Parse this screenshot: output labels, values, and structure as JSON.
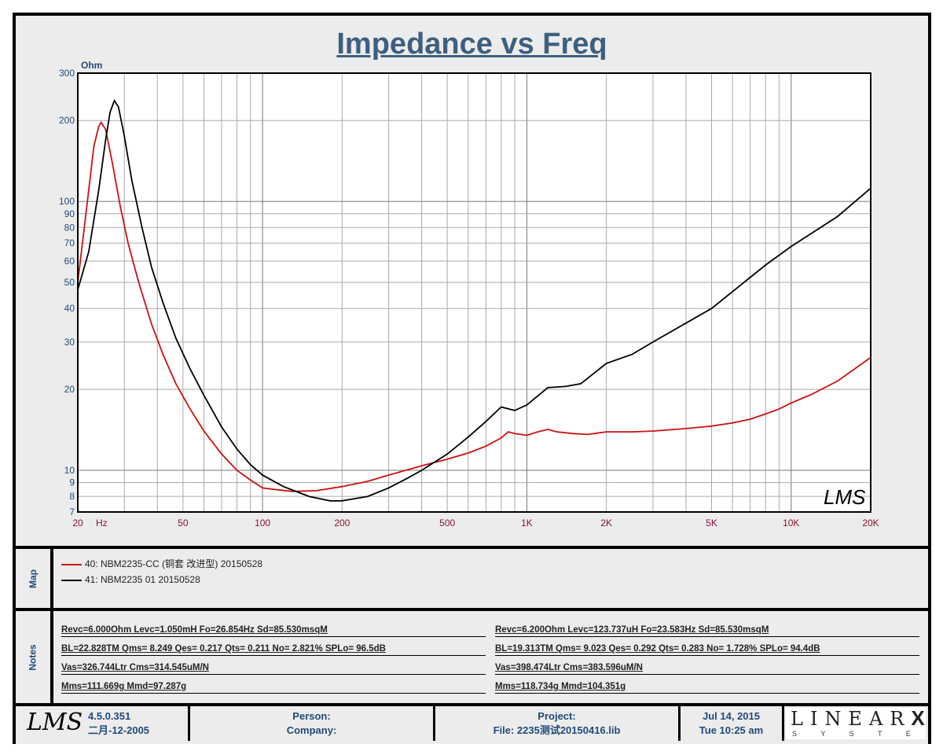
{
  "chart_data": {
    "type": "line",
    "title": "Impedance vs Freq",
    "ylabel": "Ohm",
    "xlabel": "Hz",
    "xscale": "log",
    "yscale": "log",
    "xlim": [
      20,
      20000
    ],
    "ylim": [
      7,
      300
    ],
    "grid": true,
    "x_ticks": [
      {
        "v": 20,
        "l": "20"
      },
      {
        "v": 50,
        "l": "50"
      },
      {
        "v": 100,
        "l": "100"
      },
      {
        "v": 200,
        "l": "200"
      },
      {
        "v": 500,
        "l": "500"
      },
      {
        "v": 1000,
        "l": "1K"
      },
      {
        "v": 2000,
        "l": "2K"
      },
      {
        "v": 5000,
        "l": "5K"
      },
      {
        "v": 10000,
        "l": "10K"
      },
      {
        "v": 20000,
        "l": "20K"
      }
    ],
    "y_ticks": [
      7,
      8,
      9,
      10,
      20,
      30,
      40,
      50,
      60,
      70,
      80,
      90,
      100,
      200,
      300
    ],
    "series": [
      {
        "name": "40:  NBM2235-CC (铜套 改进型) 20150528",
        "color": "#cc1111",
        "points": [
          [
            20,
            50
          ],
          [
            21,
            75
          ],
          [
            22,
            110
          ],
          [
            23,
            160
          ],
          [
            24,
            190
          ],
          [
            24.5,
            197
          ],
          [
            25.5,
            185
          ],
          [
            27,
            140
          ],
          [
            29,
            95
          ],
          [
            31,
            70
          ],
          [
            34,
            50
          ],
          [
            38,
            35
          ],
          [
            42,
            27
          ],
          [
            47,
            21
          ],
          [
            53,
            17
          ],
          [
            60,
            14
          ],
          [
            70,
            11.5
          ],
          [
            80,
            10
          ],
          [
            90,
            9.2
          ],
          [
            100,
            8.6
          ],
          [
            110,
            8.5
          ],
          [
            130,
            8.35
          ],
          [
            160,
            8.4
          ],
          [
            200,
            8.7
          ],
          [
            250,
            9.1
          ],
          [
            300,
            9.6
          ],
          [
            400,
            10.4
          ],
          [
            500,
            11
          ],
          [
            600,
            11.6
          ],
          [
            700,
            12.3
          ],
          [
            800,
            13.2
          ],
          [
            850,
            13.9
          ],
          [
            900,
            13.7
          ],
          [
            1000,
            13.5
          ],
          [
            1100,
            13.9
          ],
          [
            1200,
            14.2
          ],
          [
            1300,
            13.9
          ],
          [
            1500,
            13.7
          ],
          [
            1700,
            13.6
          ],
          [
            2000,
            13.9
          ],
          [
            2500,
            13.9
          ],
          [
            3000,
            14
          ],
          [
            4000,
            14.3
          ],
          [
            5000,
            14.6
          ],
          [
            6000,
            15
          ],
          [
            7000,
            15.5
          ],
          [
            8000,
            16.2
          ],
          [
            9000,
            16.9
          ],
          [
            10000,
            17.8
          ],
          [
            12000,
            19.2
          ],
          [
            15000,
            21.5
          ],
          [
            20000,
            26.3
          ]
        ]
      },
      {
        "name": "41: NBM2235  01 20150528",
        "color": "#000000",
        "points": [
          [
            20,
            47
          ],
          [
            22,
            65
          ],
          [
            24,
            110
          ],
          [
            25.5,
            170
          ],
          [
            26.5,
            215
          ],
          [
            27.5,
            237
          ],
          [
            28.5,
            225
          ],
          [
            30,
            175
          ],
          [
            32,
            120
          ],
          [
            35,
            80
          ],
          [
            38,
            57
          ],
          [
            42,
            42
          ],
          [
            47,
            31
          ],
          [
            53,
            24
          ],
          [
            60,
            19
          ],
          [
            70,
            14.5
          ],
          [
            80,
            12
          ],
          [
            90,
            10.5
          ],
          [
            100,
            9.6
          ],
          [
            120,
            8.7
          ],
          [
            150,
            8
          ],
          [
            180,
            7.7
          ],
          [
            200,
            7.7
          ],
          [
            250,
            8
          ],
          [
            300,
            8.6
          ],
          [
            350,
            9.3
          ],
          [
            400,
            10
          ],
          [
            500,
            11.5
          ],
          [
            600,
            13.3
          ],
          [
            700,
            15.2
          ],
          [
            800,
            17.2
          ],
          [
            900,
            16.7
          ],
          [
            1000,
            17.5
          ],
          [
            1200,
            20.3
          ],
          [
            1400,
            20.5
          ],
          [
            1600,
            21
          ],
          [
            2000,
            25
          ],
          [
            2500,
            27
          ],
          [
            3000,
            30
          ],
          [
            5000,
            40
          ],
          [
            8000,
            58
          ],
          [
            10000,
            68
          ],
          [
            15000,
            88
          ],
          [
            20000,
            112
          ]
        ]
      }
    ]
  },
  "watermark": "LMS",
  "map": {
    "label": "Map"
  },
  "notes": {
    "label": "Notes",
    "left": [
      "Revc=6.000Ohm  Levc=1.050mH  Fo=26.854Hz  Sd=85.530msqM",
      "BL=22.828TM  Qms= 8.249  Qes= 0.217  Qts= 0.211  No= 2.821%  SPLo= 96.5dB",
      "Vas=326.744Ltr  Cms=314.545uM/N",
      "Mms=111.669g  Mmd=97.287g"
    ],
    "right": [
      "Revc=6.200Ohm  Levc=123.737uH  Fo=23.583Hz  Sd=85.530msqM",
      "BL=19.313TM  Qms= 9.023  Qes= 0.292  Qts= 0.283  No= 1.728%  SPLo= 94.4dB",
      "Vas=398.474Ltr  Cms=383.596uM/N",
      "Mms=118.734g  Mmd=104.351g"
    ]
  },
  "footer": {
    "logo": "LMS",
    "version": "4.5.0.351",
    "build_date": "二月-12-2005",
    "person": "Person:",
    "company": "Company:",
    "project": "Project:",
    "file": "File: 2235测试20150416.lib",
    "date": "Jul 14, 2015",
    "time": "Tue 10:25 am",
    "brand": "LINEAR",
    "brand_x": "X",
    "brand_sub": "S Y S T E M S"
  }
}
